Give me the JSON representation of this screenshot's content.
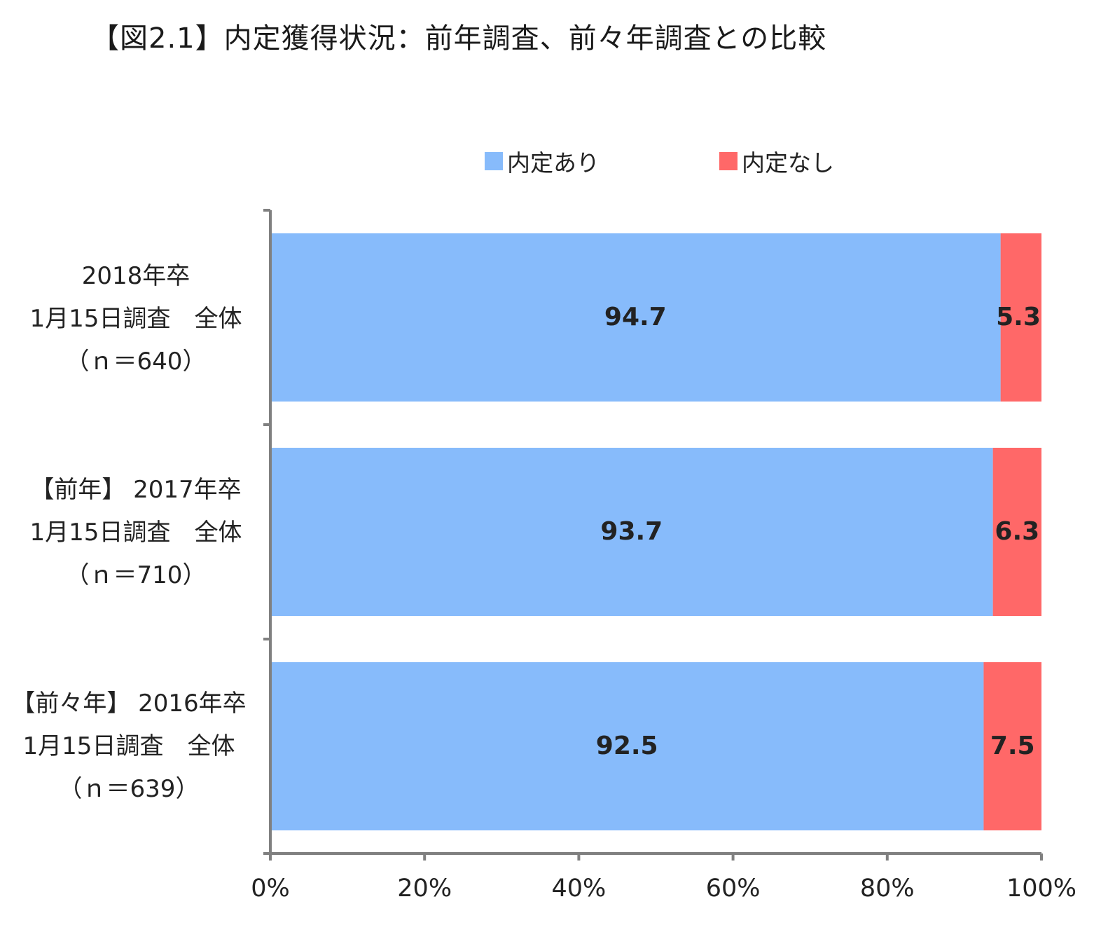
{
  "chart_data": {
    "type": "bar",
    "orientation": "horizontal",
    "stacked": "percent",
    "title": "【図2.1】内定獲得状況：前年調査、前々年調査との比較",
    "legend_position": "top",
    "categories": [
      [
        "2018年卒",
        "1月15日調査　全体",
        "（ｎ＝640）"
      ],
      [
        "【前年】 2017年卒",
        "1月15日調査　全体",
        "（ｎ＝710）"
      ],
      [
        "【前々年】 2016年卒",
        "1月15日調査　全体",
        "（ｎ＝639）"
      ]
    ],
    "series": [
      {
        "name": "内定あり",
        "color": "#87bbfb",
        "values": [
          94.7,
          93.7,
          92.5
        ],
        "labels": [
          "94.7",
          "93.7",
          "92.5"
        ]
      },
      {
        "name": "内定なし",
        "color": "#ff6868",
        "values": [
          5.3,
          6.3,
          7.5
        ],
        "labels": [
          "5.3",
          "6.3",
          "7.5"
        ]
      }
    ],
    "xlim": [
      0,
      100
    ],
    "xticks": [
      "0%",
      "20%",
      "40%",
      "60%",
      "80%",
      "100%"
    ],
    "xlabel": "",
    "ylabel": "",
    "grid": false
  }
}
